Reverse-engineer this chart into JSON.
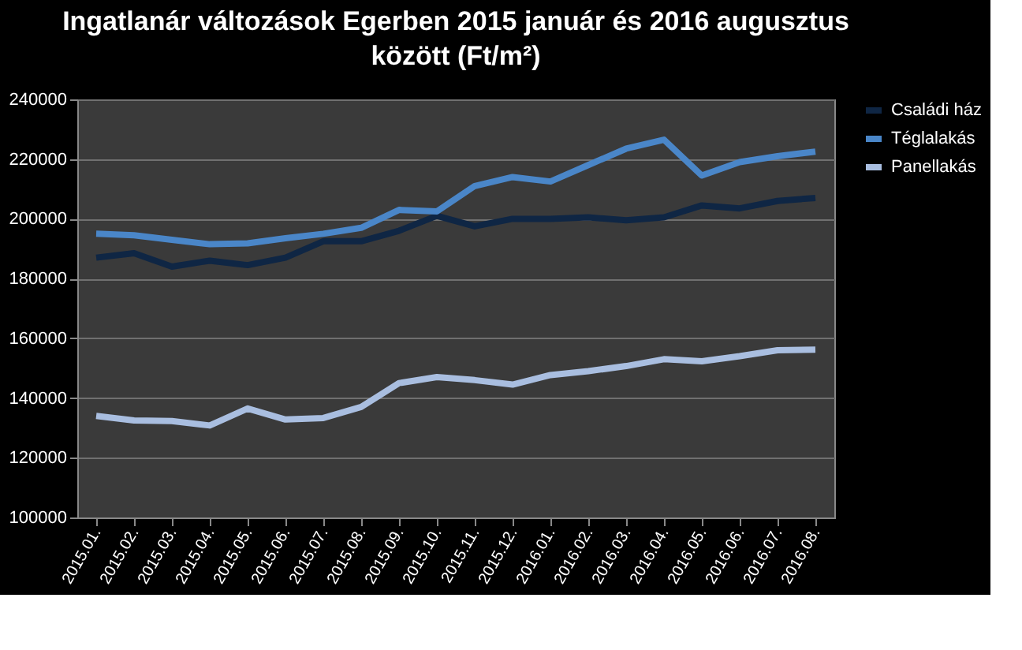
{
  "chart_data": {
    "type": "line",
    "title": "Ingatlanár változások Egerben 2015 január és 2016 augusztus\nközött (Ft/m²)",
    "categories": [
      "2015.01.",
      "2015.02.",
      "2015.03.",
      "2015.04.",
      "2015.05.",
      "2015.06.",
      "2015.07.",
      "2015.08.",
      "2015.09.",
      "2015.10.",
      "2015.11.",
      "2015.12.",
      "2016.01.",
      "2016.02.",
      "2016.03.",
      "2016.04.",
      "2016.05.",
      "2016.06.",
      "2016.07.",
      "2016.08."
    ],
    "series": [
      {
        "name": "Családi ház",
        "color": "#0f2644",
        "values": [
          187000,
          188500,
          184000,
          186000,
          184500,
          187000,
          192500,
          192500,
          196000,
          201000,
          197500,
          200000,
          200000,
          200500,
          199500,
          200500,
          204500,
          203500,
          206000,
          207000
        ]
      },
      {
        "name": "Téglalakás",
        "color": "#4a86c8",
        "values": [
          195000,
          194500,
          193000,
          191500,
          191800,
          193500,
          195000,
          197000,
          203000,
          202500,
          211000,
          214000,
          212500,
          218000,
          223500,
          226500,
          214500,
          219000,
          221000,
          222500
        ]
      },
      {
        "name": "Panellakás",
        "color": "#a9bee0",
        "values": [
          134000,
          132500,
          132300,
          130800,
          136500,
          132800,
          133300,
          137000,
          145000,
          147000,
          146000,
          144500,
          147700,
          149000,
          150700,
          153000,
          152300,
          154000,
          156000,
          156200
        ]
      }
    ],
    "ylim": [
      100000,
      240000
    ],
    "yticks": [
      100000,
      120000,
      140000,
      160000,
      180000,
      200000,
      220000,
      240000
    ],
    "grid": "y",
    "legend": "right",
    "marker": "none",
    "line_style": "solid"
  }
}
